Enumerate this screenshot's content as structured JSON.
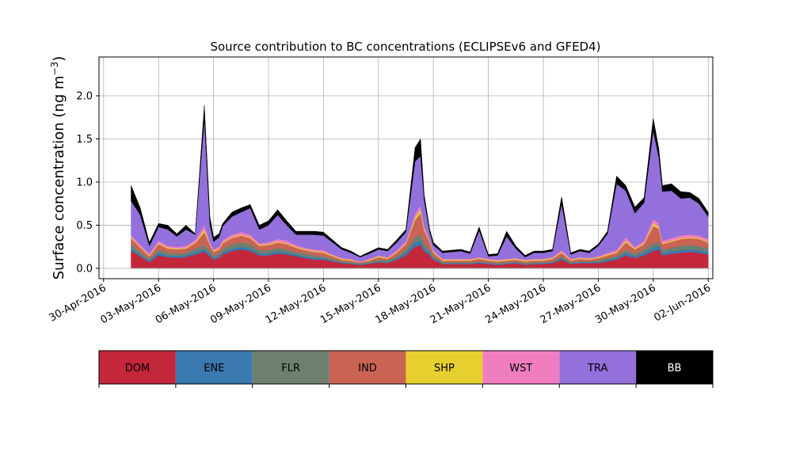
{
  "chart_data": {
    "type": "area",
    "stacked": true,
    "title": "Source contribution to BC concentrations (ECLIPSEv6 and GFED4)",
    "ylabel_main": "Surface concentration (ng m",
    "ylabel_sup": "−3",
    "ylabel_close": ")",
    "xlabel": "",
    "x_range_days": [
      -0.25,
      33.25
    ],
    "ylim": [
      -0.12,
      2.45
    ],
    "yticks": [
      0.0,
      0.5,
      1.0,
      1.5,
      2.0
    ],
    "ytick_labels": [
      "0.0",
      "0.5",
      "1.0",
      "1.5",
      "2.0"
    ],
    "xticks_days": [
      0,
      3,
      6,
      9,
      12,
      15,
      18,
      21,
      24,
      27,
      30,
      33
    ],
    "xtick_labels": [
      "30-Apr-2016",
      "03-May-2016",
      "06-May-2016",
      "09-May-2016",
      "12-May-2016",
      "15-May-2016",
      "18-May-2016",
      "21-May-2016",
      "24-May-2016",
      "27-May-2016",
      "30-May-2016",
      "02-Jun-2016"
    ],
    "grid": true,
    "series_order": [
      "DOM",
      "ENE",
      "FLR",
      "IND",
      "SHP",
      "WST",
      "TRA",
      "BB"
    ],
    "colors": {
      "DOM": "#c4263a",
      "ENE": "#3a78b0",
      "FLR": "#6d8070",
      "IND": "#c96455",
      "SHP": "#e5d030",
      "WST": "#f07ebf",
      "TRA": "#9370db",
      "BB": "#000000"
    },
    "legend": [
      {
        "label": "DOM",
        "color": "#c4263a",
        "text_color": "#000000"
      },
      {
        "label": "ENE",
        "color": "#3a78b0",
        "text_color": "#000000"
      },
      {
        "label": "FLR",
        "color": "#6d8070",
        "text_color": "#000000"
      },
      {
        "label": "IND",
        "color": "#c96455",
        "text_color": "#000000"
      },
      {
        "label": "SHP",
        "color": "#e5d030",
        "text_color": "#000000"
      },
      {
        "label": "WST",
        "color": "#f07ebf",
        "text_color": "#000000"
      },
      {
        "label": "TRA",
        "color": "#9370db",
        "text_color": "#000000"
      },
      {
        "label": "BB",
        "color": "#000000",
        "text_color": "#ffffff"
      }
    ],
    "legend_position": "bottom",
    "days": [
      1.5,
      2.0,
      2.5,
      3.0,
      3.5,
      4.0,
      4.5,
      5.0,
      5.5,
      5.8,
      6.0,
      6.3,
      6.5,
      7.0,
      7.5,
      8.0,
      8.5,
      9.0,
      9.5,
      10.0,
      10.5,
      11.0,
      11.5,
      12.0,
      12.5,
      13.0,
      13.5,
      14.0,
      14.5,
      15.0,
      15.5,
      16.0,
      16.5,
      17.0,
      17.3,
      17.5,
      17.8,
      18.0,
      18.5,
      19.0,
      19.5,
      20.0,
      20.5,
      21.0,
      21.5,
      22.0,
      22.5,
      23.0,
      23.5,
      24.0,
      24.5,
      25.0,
      25.5,
      26.0,
      26.5,
      27.0,
      27.5,
      28.0,
      28.5,
      29.0,
      29.5,
      30.0,
      30.3,
      30.5,
      31.0,
      31.5,
      32.0,
      32.5,
      33.0
    ],
    "series": [
      {
        "name": "DOM",
        "values": [
          0.2,
          0.14,
          0.07,
          0.15,
          0.13,
          0.12,
          0.13,
          0.16,
          0.19,
          0.14,
          0.1,
          0.12,
          0.16,
          0.2,
          0.22,
          0.2,
          0.15,
          0.15,
          0.17,
          0.16,
          0.14,
          0.12,
          0.1,
          0.1,
          0.08,
          0.06,
          0.05,
          0.04,
          0.05,
          0.07,
          0.06,
          0.1,
          0.15,
          0.25,
          0.27,
          0.2,
          0.15,
          0.1,
          0.05,
          0.05,
          0.05,
          0.05,
          0.06,
          0.05,
          0.04,
          0.05,
          0.06,
          0.04,
          0.05,
          0.05,
          0.06,
          0.1,
          0.05,
          0.06,
          0.06,
          0.06,
          0.08,
          0.1,
          0.15,
          0.12,
          0.15,
          0.2,
          0.22,
          0.15,
          0.17,
          0.18,
          0.19,
          0.18,
          0.16
        ]
      },
      {
        "name": "ENE",
        "values": [
          0.03,
          0.02,
          0.02,
          0.03,
          0.02,
          0.02,
          0.02,
          0.03,
          0.03,
          0.03,
          0.02,
          0.02,
          0.03,
          0.03,
          0.03,
          0.03,
          0.02,
          0.02,
          0.03,
          0.02,
          0.02,
          0.02,
          0.02,
          0.02,
          0.01,
          0.01,
          0.01,
          0.01,
          0.01,
          0.01,
          0.01,
          0.02,
          0.03,
          0.05,
          0.05,
          0.04,
          0.03,
          0.02,
          0.01,
          0.01,
          0.01,
          0.01,
          0.01,
          0.01,
          0.01,
          0.01,
          0.01,
          0.01,
          0.01,
          0.01,
          0.01,
          0.02,
          0.01,
          0.01,
          0.01,
          0.01,
          0.02,
          0.02,
          0.03,
          0.02,
          0.03,
          0.04,
          0.04,
          0.03,
          0.03,
          0.03,
          0.03,
          0.03,
          0.03
        ]
      },
      {
        "name": "FLR",
        "values": [
          0.05,
          0.03,
          0.02,
          0.04,
          0.03,
          0.03,
          0.03,
          0.04,
          0.05,
          0.04,
          0.03,
          0.03,
          0.04,
          0.05,
          0.05,
          0.05,
          0.04,
          0.04,
          0.04,
          0.04,
          0.03,
          0.03,
          0.03,
          0.02,
          0.02,
          0.01,
          0.01,
          0.01,
          0.01,
          0.02,
          0.02,
          0.02,
          0.04,
          0.06,
          0.07,
          0.05,
          0.04,
          0.02,
          0.01,
          0.01,
          0.01,
          0.01,
          0.01,
          0.01,
          0.01,
          0.01,
          0.01,
          0.01,
          0.01,
          0.01,
          0.01,
          0.02,
          0.01,
          0.01,
          0.01,
          0.02,
          0.02,
          0.02,
          0.04,
          0.03,
          0.04,
          0.05,
          0.05,
          0.04,
          0.04,
          0.05,
          0.05,
          0.05,
          0.04
        ]
      },
      {
        "name": "IND",
        "values": [
          0.07,
          0.05,
          0.03,
          0.06,
          0.05,
          0.05,
          0.05,
          0.06,
          0.15,
          0.06,
          0.04,
          0.05,
          0.06,
          0.07,
          0.08,
          0.07,
          0.05,
          0.06,
          0.06,
          0.06,
          0.05,
          0.04,
          0.04,
          0.04,
          0.03,
          0.02,
          0.02,
          0.01,
          0.02,
          0.03,
          0.02,
          0.04,
          0.06,
          0.2,
          0.25,
          0.15,
          0.08,
          0.04,
          0.02,
          0.02,
          0.02,
          0.02,
          0.03,
          0.02,
          0.02,
          0.02,
          0.02,
          0.02,
          0.02,
          0.02,
          0.03,
          0.04,
          0.02,
          0.03,
          0.02,
          0.03,
          0.03,
          0.04,
          0.08,
          0.05,
          0.06,
          0.2,
          0.15,
          0.06,
          0.07,
          0.08,
          0.08,
          0.08,
          0.07
        ]
      },
      {
        "name": "SHP",
        "values": [
          0.01,
          0.01,
          0.01,
          0.01,
          0.01,
          0.01,
          0.01,
          0.01,
          0.03,
          0.01,
          0.01,
          0.01,
          0.01,
          0.01,
          0.01,
          0.01,
          0.01,
          0.01,
          0.01,
          0.01,
          0.01,
          0.01,
          0.01,
          0.01,
          0.01,
          0.01,
          0.01,
          0.0,
          0.01,
          0.01,
          0.01,
          0.01,
          0.01,
          0.03,
          0.04,
          0.02,
          0.01,
          0.01,
          0.01,
          0.01,
          0.01,
          0.01,
          0.01,
          0.01,
          0.01,
          0.01,
          0.01,
          0.01,
          0.01,
          0.01,
          0.01,
          0.01,
          0.01,
          0.01,
          0.01,
          0.01,
          0.01,
          0.01,
          0.02,
          0.01,
          0.01,
          0.03,
          0.02,
          0.01,
          0.01,
          0.01,
          0.01,
          0.01,
          0.01
        ]
      },
      {
        "name": "WST",
        "values": [
          0.03,
          0.02,
          0.02,
          0.03,
          0.02,
          0.02,
          0.02,
          0.03,
          0.05,
          0.03,
          0.02,
          0.02,
          0.03,
          0.03,
          0.03,
          0.03,
          0.02,
          0.02,
          0.03,
          0.03,
          0.02,
          0.02,
          0.02,
          0.02,
          0.01,
          0.01,
          0.01,
          0.01,
          0.01,
          0.01,
          0.01,
          0.02,
          0.02,
          0.04,
          0.05,
          0.03,
          0.02,
          0.02,
          0.01,
          0.01,
          0.01,
          0.01,
          0.01,
          0.01,
          0.01,
          0.01,
          0.01,
          0.01,
          0.01,
          0.01,
          0.01,
          0.02,
          0.01,
          0.01,
          0.01,
          0.01,
          0.02,
          0.02,
          0.04,
          0.02,
          0.03,
          0.05,
          0.04,
          0.03,
          0.03,
          0.03,
          0.03,
          0.03,
          0.03
        ]
      },
      {
        "name": "TRA",
        "values": [
          0.39,
          0.35,
          0.09,
          0.16,
          0.19,
          0.12,
          0.19,
          0.06,
          1.24,
          0.2,
          0.09,
          0.11,
          0.16,
          0.21,
          0.23,
          0.31,
          0.16,
          0.2,
          0.28,
          0.18,
          0.12,
          0.15,
          0.17,
          0.17,
          0.14,
          0.1,
          0.07,
          0.05,
          0.06,
          0.07,
          0.07,
          0.09,
          0.11,
          0.61,
          0.57,
          0.3,
          0.09,
          0.06,
          0.07,
          0.08,
          0.09,
          0.06,
          0.31,
          0.03,
          0.05,
          0.26,
          0.11,
          0.03,
          0.07,
          0.07,
          0.07,
          0.54,
          0.05,
          0.07,
          0.06,
          0.12,
          0.22,
          0.77,
          0.54,
          0.39,
          0.44,
          1.03,
          0.77,
          0.57,
          0.55,
          0.43,
          0.43,
          0.37,
          0.26
        ]
      },
      {
        "name": "BB",
        "values": [
          0.18,
          0.08,
          0.04,
          0.04,
          0.05,
          0.03,
          0.05,
          0.01,
          0.15,
          0.09,
          0.05,
          0.04,
          0.03,
          0.05,
          0.05,
          0.04,
          0.05,
          0.05,
          0.06,
          0.05,
          0.04,
          0.04,
          0.04,
          0.04,
          0.03,
          0.02,
          0.02,
          0.01,
          0.02,
          0.02,
          0.02,
          0.03,
          0.03,
          0.16,
          0.2,
          0.06,
          0.03,
          0.03,
          0.02,
          0.02,
          0.02,
          0.02,
          0.04,
          0.02,
          0.02,
          0.06,
          0.03,
          0.02,
          0.02,
          0.02,
          0.02,
          0.08,
          0.02,
          0.02,
          0.02,
          0.02,
          0.03,
          0.09,
          0.06,
          0.07,
          0.06,
          0.14,
          0.1,
          0.07,
          0.08,
          0.08,
          0.06,
          0.06,
          0.05
        ]
      }
    ]
  }
}
